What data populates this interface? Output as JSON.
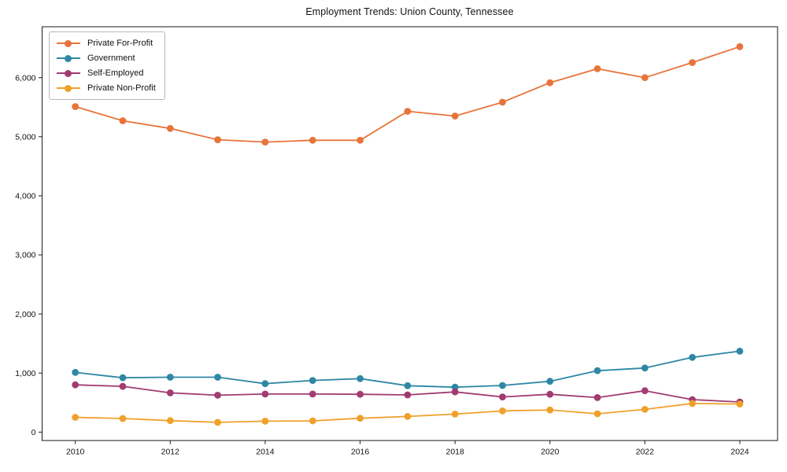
{
  "title": "Employment Trends: Union County, Tennessee",
  "chart_data": {
    "type": "line",
    "title": "Employment Trends: Union County, Tennessee",
    "xlabel": "",
    "ylabel": "",
    "grid": false,
    "legend_position": "upper-left",
    "x": [
      2010,
      2011,
      2012,
      2013,
      2014,
      2015,
      2016,
      2017,
      2018,
      2019,
      2020,
      2021,
      2022,
      2023,
      2024
    ],
    "x_tick_labels": [
      "2010",
      "2012",
      "2014",
      "2016",
      "2018",
      "2020",
      "2022",
      "2024"
    ],
    "x_ticks": [
      2010,
      2012,
      2014,
      2016,
      2018,
      2020,
      2022,
      2024
    ],
    "y_ticks": [
      0,
      1000,
      2000,
      3000,
      4000,
      5000,
      6000
    ],
    "y_tick_labels": [
      "0",
      "1,000",
      "2,000",
      "3,000",
      "4,000",
      "5,000",
      "6,000"
    ],
    "ylim": [
      -170,
      6870
    ],
    "series": [
      {
        "name": "Private For-Profit",
        "color": "#e8743b",
        "values": [
          5510,
          5270,
          5140,
          4950,
          4910,
          4940,
          4940,
          5430,
          5350,
          5585,
          5915,
          6150,
          6000,
          6255,
          6525
        ]
      },
      {
        "name": "Government",
        "color": "#2e87a5",
        "values": [
          1010,
          920,
          930,
          930,
          820,
          875,
          905,
          785,
          760,
          790,
          860,
          1040,
          1085,
          1265,
          1370
        ]
      },
      {
        "name": "Self-Employed",
        "color": "#a23b72",
        "values": [
          800,
          775,
          665,
          625,
          645,
          645,
          640,
          630,
          680,
          595,
          640,
          585,
          700,
          550,
          510
        ]
      },
      {
        "name": "Private Non-Profit",
        "color": "#f0a02a",
        "values": [
          250,
          230,
          195,
          165,
          185,
          190,
          235,
          265,
          305,
          360,
          375,
          310,
          385,
          485,
          475
        ]
      }
    ]
  }
}
